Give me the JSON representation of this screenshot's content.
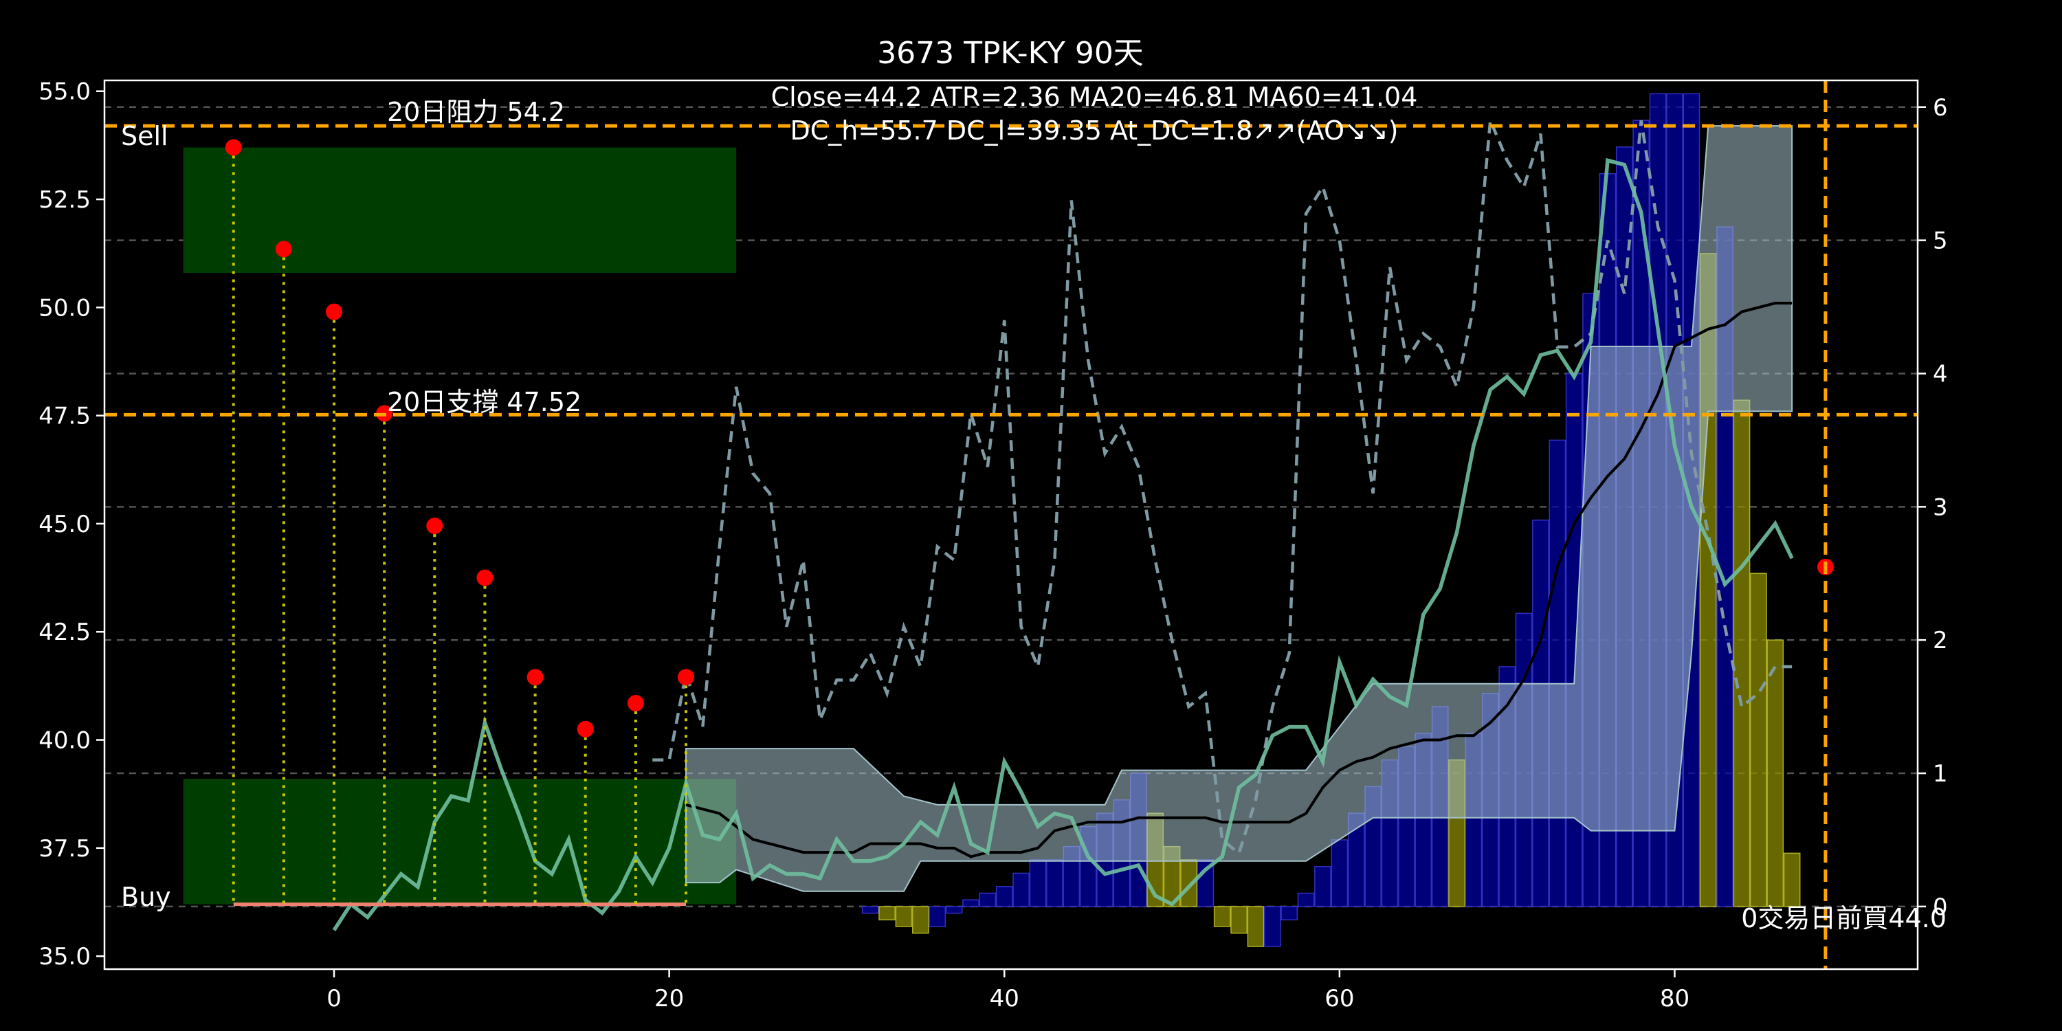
{
  "chart_data": {
    "type": "line",
    "title": "3673 TPK-KY 90天",
    "annotations": {
      "stats_line1": "Close=44.2 ATR=2.36 MA20=46.81 MA60=41.04",
      "stats_line2": "DC_h=55.7 DC_l=39.35 At_DC=1.8↗↗(AO↘↘)",
      "resistance_label": "20日阻力 54.2",
      "support_label": "20日支撐 47.52",
      "sell_label": "Sell",
      "buy_label": "Buy",
      "bottom_right": "0交易日前買44.0"
    },
    "axes": {
      "x": {
        "range": [
          -13.7,
          94.5
        ],
        "ticks": [
          0,
          20,
          40,
          60,
          80
        ]
      },
      "y_left": {
        "range": [
          34.7,
          55.25
        ],
        "ticks": [
          35.0,
          37.5,
          40.0,
          42.5,
          45.0,
          47.5,
          50.0,
          52.5,
          55.0
        ]
      },
      "y_right": {
        "range": [
          -0.47,
          6.2
        ],
        "ticks": [
          0,
          1,
          2,
          3,
          4,
          5,
          6
        ]
      },
      "grid": "horizontal dashed at right-axis ticks"
    },
    "hlines": [
      {
        "name": "resistance",
        "y": 54.2,
        "color": "#ffa500"
      },
      {
        "name": "support",
        "y": 47.52,
        "color": "#ffa500"
      }
    ],
    "vline": {
      "x": 89,
      "color": "#ffa500"
    },
    "sell_zone": {
      "x": [
        -9,
        24
      ],
      "y": [
        50.8,
        53.7
      ],
      "color": "#003d00"
    },
    "buy_zone": {
      "x": [
        -9,
        24
      ],
      "y": [
        36.2,
        39.1
      ],
      "color": "#003d00"
    },
    "signal_points": {
      "x": [
        -6,
        -3,
        0,
        3,
        6,
        9,
        12,
        15,
        18,
        21
      ],
      "y": [
        53.7,
        51.35,
        49.9,
        47.55,
        44.95,
        43.75,
        41.45,
        40.25,
        40.85,
        41.45
      ],
      "color": "#ff0000"
    },
    "last_marker": {
      "x": 89,
      "y": 44.0
    },
    "buy_baseline": {
      "x": [
        -6,
        21
      ],
      "y": 36.2,
      "color": "#f08070"
    },
    "close_line": {
      "color": "#6fbf9f",
      "x": [
        0,
        1,
        2,
        3,
        4,
        5,
        6,
        7,
        8,
        9,
        10,
        11,
        12,
        13,
        14,
        15,
        16,
        17,
        18,
        19,
        20,
        21,
        22,
        23,
        24,
        25,
        26,
        27,
        28,
        29,
        30,
        31,
        32,
        33,
        34,
        35,
        36,
        37,
        38,
        39,
        40,
        41,
        42,
        43,
        44,
        45,
        46,
        47,
        48,
        49,
        50,
        51,
        52,
        53,
        54,
        55,
        56,
        57,
        58,
        59,
        60,
        61,
        62,
        63,
        64,
        65,
        66,
        67,
        68,
        69,
        70,
        71,
        72,
        73,
        74,
        75,
        76,
        77,
        78,
        79,
        80,
        81,
        82,
        83,
        84,
        85,
        86,
        87
      ],
      "y": [
        35.6,
        36.2,
        35.9,
        36.4,
        36.9,
        36.6,
        38.1,
        38.7,
        38.6,
        40.4,
        39.3,
        38.3,
        37.2,
        36.9,
        37.7,
        36.3,
        36.0,
        36.5,
        37.3,
        36.7,
        37.5,
        39.0,
        37.8,
        37.7,
        38.3,
        36.8,
        37.1,
        36.9,
        36.9,
        36.8,
        37.7,
        37.2,
        37.2,
        37.3,
        37.6,
        38.1,
        37.8,
        38.9,
        37.6,
        37.4,
        39.5,
        38.8,
        38.0,
        38.3,
        38.2,
        37.3,
        36.9,
        37.0,
        37.1,
        36.4,
        36.2,
        36.6,
        37.0,
        37.3,
        38.9,
        39.2,
        40.1,
        40.3,
        40.3,
        39.5,
        41.8,
        40.8,
        41.4,
        41.0,
        40.8,
        42.9,
        43.5,
        44.8,
        46.8,
        48.1,
        48.4,
        48.0,
        48.9,
        49.0,
        48.4,
        49.2,
        53.4,
        53.3,
        52.2,
        49.5,
        46.8,
        45.4,
        44.6,
        43.6,
        44.0,
        44.5,
        45.0,
        44.2
      ]
    },
    "ma20_line": {
      "color": "#000000",
      "x": [
        21,
        22,
        23,
        24,
        25,
        26,
        27,
        28,
        29,
        30,
        31,
        32,
        33,
        34,
        35,
        36,
        37,
        38,
        39,
        40,
        41,
        42,
        43,
        44,
        45,
        46,
        47,
        48,
        49,
        50,
        51,
        52,
        53,
        54,
        55,
        56,
        57,
        58,
        59,
        60,
        61,
        62,
        63,
        64,
        65,
        66,
        67,
        68,
        69,
        70,
        71,
        72,
        73,
        74,
        75,
        76,
        77,
        78,
        79,
        80,
        81,
        82,
        83,
        84,
        85,
        86,
        87
      ],
      "y": [
        38.5,
        38.4,
        38.3,
        38.0,
        37.7,
        37.6,
        37.5,
        37.4,
        37.4,
        37.4,
        37.4,
        37.6,
        37.6,
        37.6,
        37.6,
        37.5,
        37.5,
        37.3,
        37.4,
        37.4,
        37.4,
        37.5,
        37.9,
        38.0,
        38.1,
        38.1,
        38.1,
        38.2,
        38.2,
        38.2,
        38.2,
        38.2,
        38.1,
        38.1,
        38.1,
        38.1,
        38.1,
        38.3,
        38.9,
        39.3,
        39.5,
        39.6,
        39.8,
        39.9,
        40.0,
        40.0,
        40.1,
        40.1,
        40.4,
        40.8,
        41.4,
        42.3,
        44.0,
        45.0,
        45.6,
        46.1,
        46.5,
        47.2,
        48.0,
        49.1,
        49.3,
        49.5,
        49.6,
        49.9,
        50.0,
        50.1,
        50.1
      ]
    },
    "at_dc_line": {
      "axis": "right",
      "color": "#7f9aa3",
      "x": [
        19,
        20,
        21,
        22,
        23,
        24,
        25,
        26,
        27,
        28,
        29,
        30,
        31,
        32,
        33,
        34,
        35,
        36,
        37,
        38,
        39,
        40,
        41,
        42,
        43,
        44,
        45,
        46,
        47,
        48,
        49,
        50,
        51,
        52,
        53,
        54,
        55,
        56,
        57,
        58,
        59,
        60,
        61,
        62,
        63,
        64,
        65,
        66,
        67,
        68,
        69,
        70,
        71,
        72,
        73,
        74,
        75,
        76,
        77,
        78,
        79,
        80,
        81,
        82,
        83,
        84,
        85,
        86,
        87
      ],
      "y": [
        1.1,
        1.1,
        1.75,
        1.35,
        2.7,
        3.9,
        3.25,
        3.1,
        2.1,
        2.6,
        1.4,
        1.7,
        1.7,
        1.9,
        1.6,
        2.1,
        1.8,
        2.7,
        2.6,
        3.7,
        3.3,
        4.4,
        2.1,
        1.8,
        2.6,
        5.3,
        4.1,
        3.4,
        3.6,
        3.3,
        2.6,
        2.0,
        1.5,
        1.6,
        0.5,
        0.4,
        0.8,
        1.5,
        1.9,
        5.2,
        5.4,
        5.0,
        4.1,
        3.1,
        4.8,
        4.1,
        4.3,
        4.2,
        3.9,
        4.5,
        5.9,
        5.6,
        5.4,
        5.8,
        4.2,
        4.2,
        4.3,
        5.0,
        4.6,
        5.9,
        5.1,
        4.7,
        3.4,
        2.8,
        2.1,
        1.5,
        1.6,
        1.8,
        1.8
      ]
    },
    "ao_bars": {
      "axis": "right",
      "x": [
        32,
        33,
        34,
        35,
        36,
        37,
        38,
        39,
        40,
        41,
        42,
        43,
        44,
        45,
        46,
        47,
        48,
        49,
        50,
        51,
        52,
        53,
        54,
        55,
        56,
        57,
        58,
        59,
        60,
        61,
        62,
        63,
        64,
        65,
        66,
        67,
        68,
        69,
        70,
        71,
        72,
        73,
        74,
        75,
        76,
        77,
        78,
        79,
        80,
        81,
        82,
        83,
        84,
        85,
        86,
        87
      ],
      "values": [
        -0.05,
        -0.1,
        -0.15,
        -0.2,
        -0.15,
        -0.05,
        0.05,
        0.1,
        0.15,
        0.25,
        0.35,
        0.35,
        0.45,
        0.6,
        0.7,
        0.8,
        1.0,
        0.7,
        0.45,
        0.35,
        0.35,
        -0.15,
        -0.2,
        -0.3,
        -0.3,
        -0.1,
        0.1,
        0.3,
        0.5,
        0.7,
        0.9,
        1.1,
        1.2,
        1.3,
        1.5,
        1.1,
        1.3,
        1.6,
        1.8,
        2.2,
        2.9,
        3.5,
        4.0,
        4.6,
        5.5,
        5.7,
        5.9,
        6.1,
        6.1,
        6.1,
        4.9,
        5.1,
        3.8,
        2.5,
        2.0,
        0.4
      ],
      "colors": {
        "rising": "#0000a0",
        "falling": "#8b8b00"
      }
    },
    "dc_bands": {
      "color": "#a5c3cc",
      "upper": [
        [
          21,
          39.8
        ],
        [
          31,
          39.8
        ],
        [
          34,
          38.7
        ],
        [
          36,
          38.5
        ],
        [
          46,
          38.5
        ],
        [
          47,
          39.3
        ],
        [
          58,
          39.3
        ],
        [
          62,
          41.3
        ],
        [
          74,
          41.3
        ],
        [
          75,
          49.1
        ],
        [
          81,
          49.1
        ],
        [
          82,
          54.2
        ],
        [
          87,
          54.2
        ]
      ],
      "lower": [
        [
          21,
          36.7
        ],
        [
          23,
          36.7
        ],
        [
          24,
          37.0
        ],
        [
          28,
          36.5
        ],
        [
          34,
          36.5
        ],
        [
          35,
          37.2
        ],
        [
          37,
          37.2
        ],
        [
          38,
          37.2
        ],
        [
          58,
          37.2
        ],
        [
          62,
          38.2
        ],
        [
          74,
          38.2
        ],
        [
          75,
          37.9
        ],
        [
          80,
          37.9
        ],
        [
          81,
          42.0
        ],
        [
          82,
          47.6
        ],
        [
          87,
          47.6
        ]
      ]
    }
  }
}
